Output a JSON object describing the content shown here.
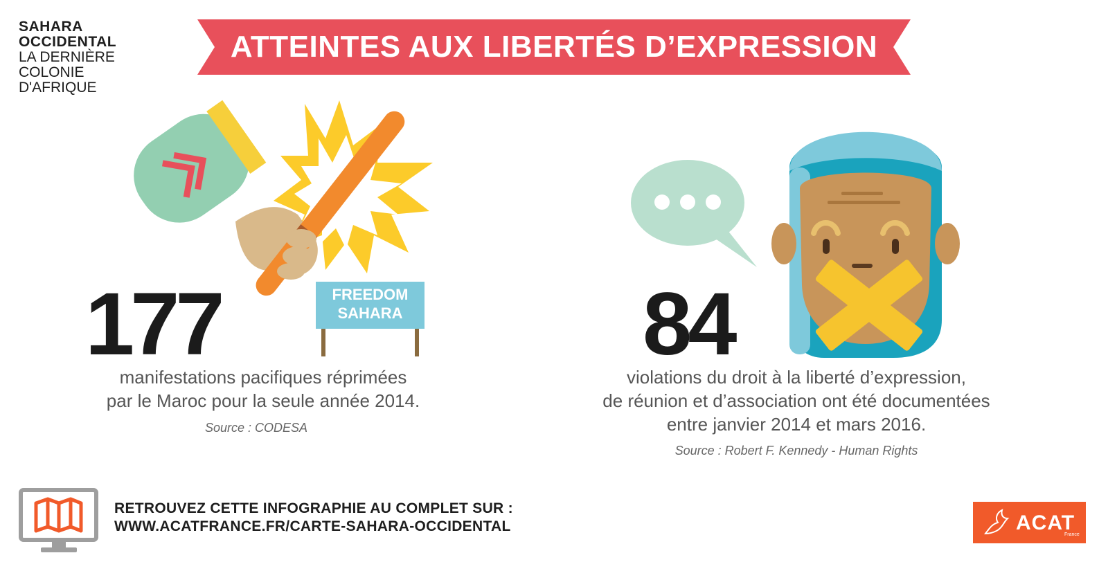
{
  "brand": {
    "line1": "SAHARA",
    "line2": "OCCIDENTAL",
    "line3": "LA DERNIÈRE",
    "line4": "COLONIE",
    "line5": "D'AFRIQUE"
  },
  "banner": {
    "title": "ATTEINTES AUX LIBERTÉS D’EXPRESSION"
  },
  "stat1": {
    "value": "177",
    "desc_line1": "manifestations pacifiques réprimées",
    "desc_line2": "par le Maroc pour la seule année 2014.",
    "source": "Source : CODESA",
    "sign_line1": "FREEDOM",
    "sign_line2": "SAHARA"
  },
  "stat2": {
    "value": "84",
    "desc_line1": "violations du droit à la liberté d’expression,",
    "desc_line2": "de réunion et d’association ont été documentées",
    "desc_line3": "entre janvier 2014 et mars 2016.",
    "source": "Source : Robert F. Kennedy - Human Rights"
  },
  "footer": {
    "cta_line1": "RETROUVEZ CETTE INFOGRAPHIE AU COMPLET SUR :",
    "cta_line2": "WWW.ACATFRANCE.FR/CARTE-SAHARA-OCCIDENTAL",
    "logo_name": "ACAT",
    "logo_sub": "France"
  },
  "colors": {
    "banner_red": "#e8505b",
    "sleeve_green": "#93cfb1",
    "baton_orange": "#f28a2d",
    "explosion_yellow": "#fccb2a",
    "sign_blue": "#7ec9db",
    "turban_teal": "#1aa3bd",
    "acat_orange": "#f15a2a"
  }
}
